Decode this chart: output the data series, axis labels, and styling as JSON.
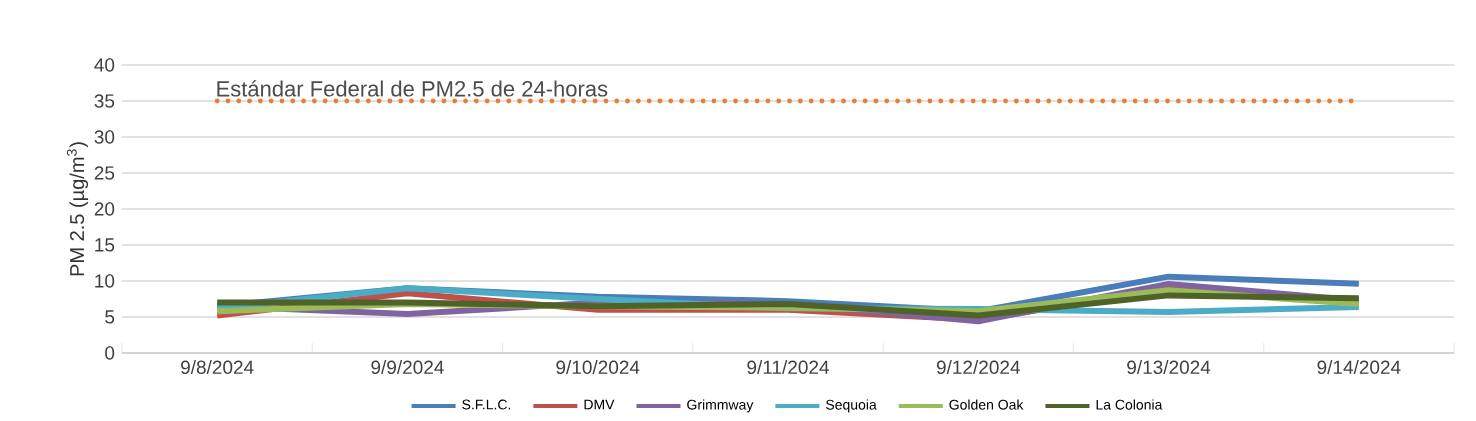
{
  "chart_data": {
    "type": "line",
    "ylabel": "PM 2.5 (µg/m$^{3}$)",
    "categories": [
      "9/8/2024",
      "9/9/2024",
      "9/10/2024",
      "9/11/2024",
      "9/12/2024",
      "9/13/2024",
      "9/14/2024"
    ],
    "series": [
      {
        "name": "S.F.L.C.",
        "color": "#4a7ebb",
        "values": [
          6.5,
          9,
          7.8,
          7.2,
          5.8,
          10.6,
          9.6
        ]
      },
      {
        "name": "DMV",
        "color": "#c0504d",
        "values": [
          5.2,
          8.3,
          6,
          6,
          4.6,
          9,
          7
        ]
      },
      {
        "name": "Grimmway",
        "color": "#8064a2",
        "values": [
          6.5,
          5.4,
          7,
          6.8,
          4.4,
          9.6,
          7.3
        ]
      },
      {
        "name": "Sequoia",
        "color": "#4bacc6",
        "values": [
          6.2,
          9,
          7.5,
          6.2,
          6.1,
          5.7,
          6.4
        ]
      },
      {
        "name": "Golden Oak",
        "color": "#9bbb59",
        "values": [
          5.8,
          6.8,
          6.5,
          6.3,
          5.8,
          8.7,
          6.8
        ]
      },
      {
        "name": "La Colonia",
        "color": "#4f6228",
        "values": [
          7,
          7,
          6.5,
          6.8,
          5.2,
          8,
          7.6
        ]
      }
    ],
    "ylim": [
      0,
      40
    ],
    "yticks": [
      0,
      5,
      10,
      15,
      20,
      25,
      30,
      35,
      40
    ],
    "ref_lines": [
      {
        "axis": "y",
        "value": 35,
        "label": "Estándar Federal de PM2.5 de 24-horas",
        "color": "#ed7d31",
        "line_style": "dotted"
      }
    ],
    "grid": "y",
    "legend": "bottom",
    "marker": "none",
    "line_style": "solid"
  }
}
